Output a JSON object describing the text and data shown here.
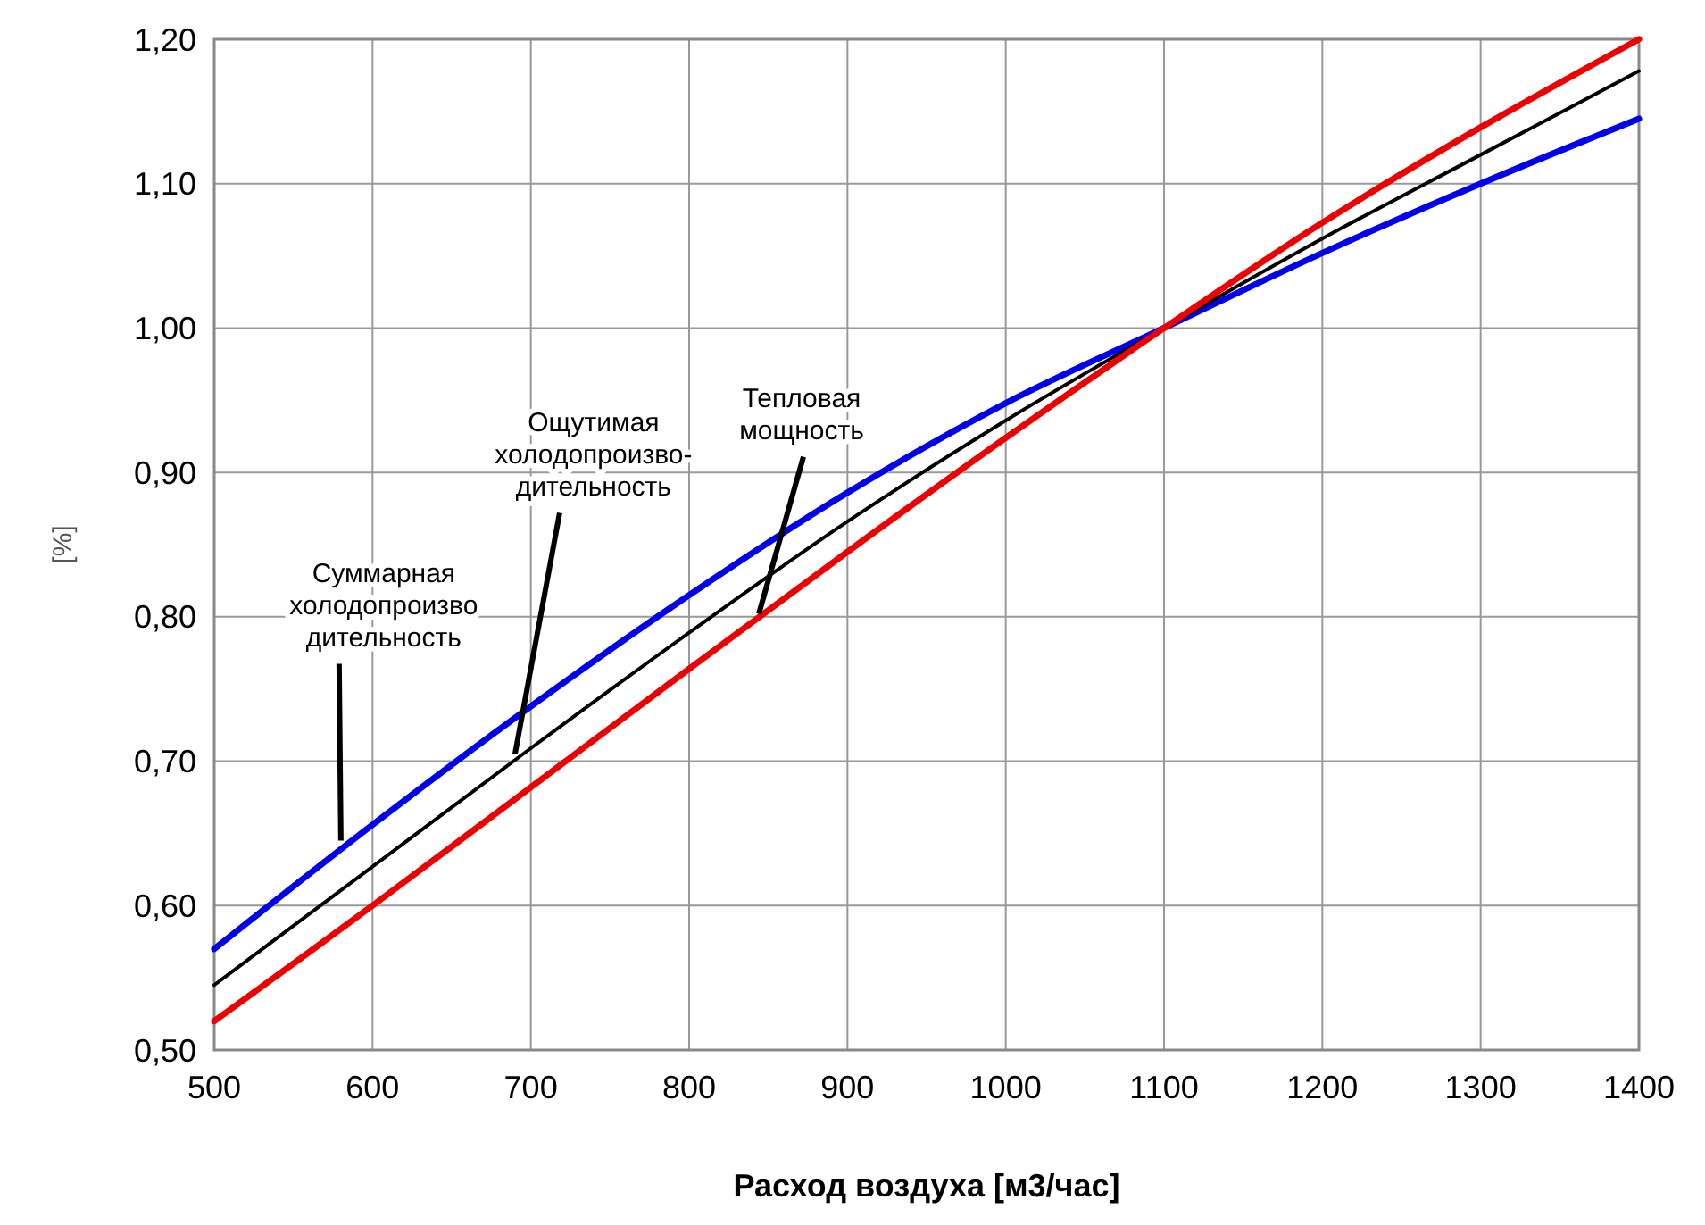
{
  "chart_data": {
    "type": "line",
    "xlabel": "Расход воздуха [м3/час]",
    "ylabel": "[%]",
    "x": [
      500,
      600,
      700,
      800,
      900,
      1000,
      1100,
      1200,
      1300,
      1400
    ],
    "series": [
      {
        "color": "#0000ee",
        "values": [
          0.57,
          0.656,
          0.738,
          0.815,
          0.886,
          0.948,
          1.0,
          1.052,
          1.1,
          1.145
        ]
      },
      {
        "color": "#000000",
        "values": [
          0.545,
          0.627,
          0.709,
          0.789,
          0.866,
          0.936,
          1.0,
          1.062,
          1.12,
          1.178
        ]
      },
      {
        "color": "#ee0000",
        "values": [
          0.52,
          0.6,
          0.682,
          0.764,
          0.845,
          0.924,
          1.0,
          1.073,
          1.139,
          1.2
        ]
      }
    ],
    "xlim": [
      500,
      1400
    ],
    "xticks": [
      500,
      600,
      700,
      800,
      900,
      1000,
      1100,
      1200,
      1300,
      1400
    ],
    "ylim": [
      0.5,
      1.2
    ],
    "yticks": [
      {
        "value": 0.5,
        "label": "0,50"
      },
      {
        "value": 0.6,
        "label": "0,60"
      },
      {
        "value": 0.7,
        "label": "0,70"
      },
      {
        "value": 0.8,
        "label": "0,80"
      },
      {
        "value": 0.9,
        "label": "0,90"
      },
      {
        "value": 1.0,
        "label": "1,00"
      },
      {
        "value": 1.1,
        "label": "1,10"
      },
      {
        "value": 1.2,
        "label": "1,20"
      }
    ],
    "grid": true,
    "marker": "none",
    "line_style": "solid",
    "annotations": [
      {
        "text": "Суммарная\nхолодопроизво\nдительность",
        "x": 580,
        "y": 0.645
      },
      {
        "text": "Ощутимая\nхолодопроизво-\nдительность",
        "x": 690,
        "y": 0.705
      },
      {
        "text": "Тепловая\nмощность",
        "x": 844,
        "y": 0.802
      }
    ]
  }
}
